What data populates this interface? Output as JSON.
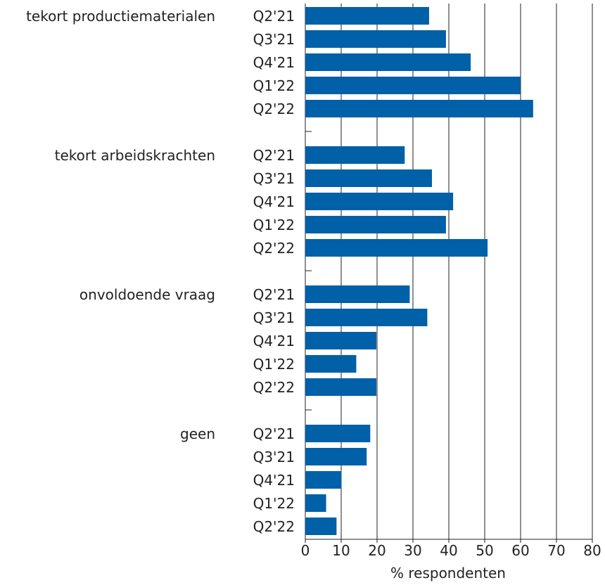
{
  "chart_data": {
    "type": "bar",
    "orientation": "horizontal",
    "xlabel": "% respondenten",
    "xlim": [
      0,
      80
    ],
    "xticks": [
      0,
      10,
      20,
      30,
      40,
      50,
      60,
      70,
      80
    ],
    "grid": true,
    "bar_color": "#0060a8",
    "groups": [
      {
        "name": "tekort productiematerialen",
        "periods": [
          "Q2'21",
          "Q3'21",
          "Q4'21",
          "Q1'22",
          "Q2'22"
        ],
        "values": [
          34.5,
          39.2,
          46.1,
          60,
          63.5
        ]
      },
      {
        "name": "tekort arbeidskrachten",
        "periods": [
          "Q2'21",
          "Q3'21",
          "Q4'21",
          "Q1'22",
          "Q2'22"
        ],
        "values": [
          27.7,
          35.3,
          41.2,
          39.2,
          50.8
        ]
      },
      {
        "name": "onvoldoende vraag",
        "periods": [
          "Q2'21",
          "Q3'21",
          "Q4'21",
          "Q1'22",
          "Q2'22"
        ],
        "values": [
          29.1,
          34,
          19.8,
          14.2,
          19.8
        ]
      },
      {
        "name": "geen",
        "periods": [
          "Q2'21",
          "Q3'21",
          "Q4'21",
          "Q1'22",
          "Q2'22"
        ],
        "values": [
          18.1,
          17.1,
          10.1,
          5.8,
          8.7
        ]
      }
    ]
  }
}
